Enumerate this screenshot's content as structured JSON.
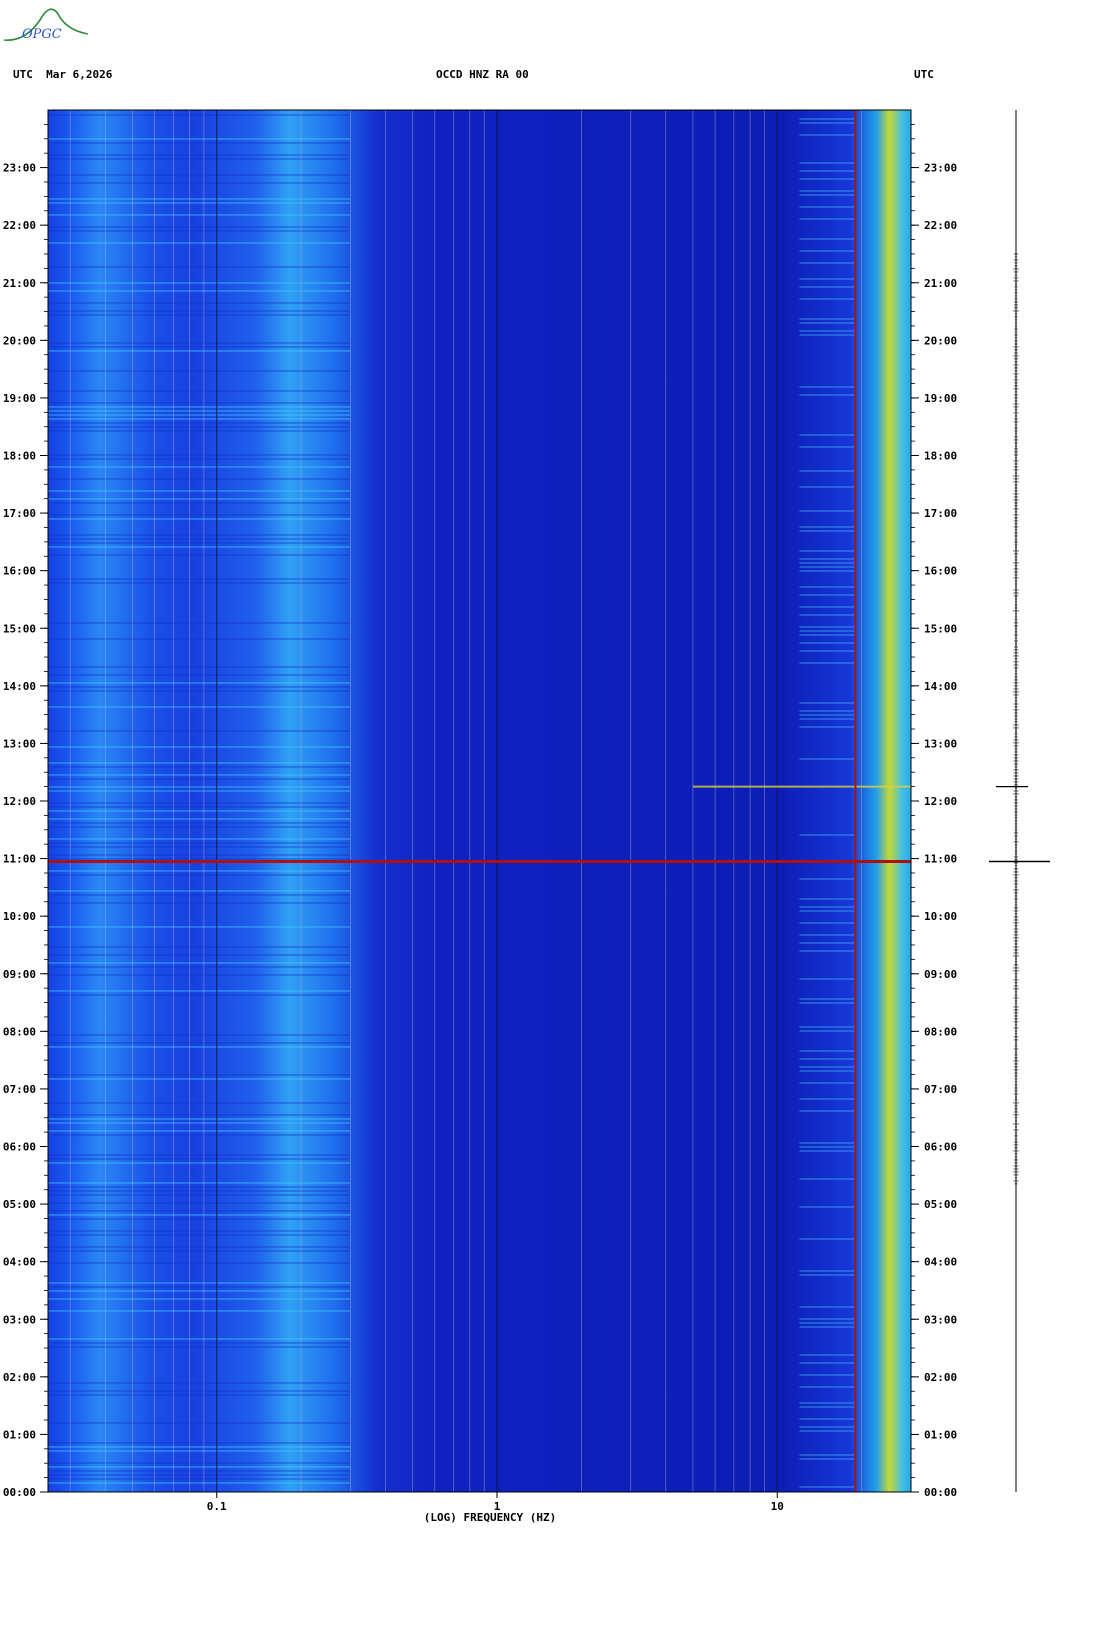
{
  "logo": {
    "text": "OPGC"
  },
  "header": {
    "left": "UTC  Mar 6,2026",
    "center": "OCCD HNZ RA 00",
    "right": "UTC"
  },
  "colors": {
    "low": "#0a1fb8",
    "mid": "#1e5cf0",
    "high": "#3ad8f5",
    "peak": "#e8e020",
    "event": "#b01010"
  },
  "chart_data": {
    "type": "heatmap",
    "title": "OCCD HNZ RA 00",
    "xlabel": "(LOG) FREQUENCY (HZ)",
    "ylabel": "UTC",
    "x_scale": "log",
    "xlim": [
      0.025,
      30
    ],
    "ylim": [
      "00:00",
      "24:00"
    ],
    "x_tick_labels": [
      "0.1",
      "1",
      "10"
    ],
    "x_tick_values": [
      0.1,
      1,
      10
    ],
    "y_tick_labels": [
      "00:00",
      "01:00",
      "02:00",
      "03:00",
      "04:00",
      "05:00",
      "06:00",
      "07:00",
      "08:00",
      "09:00",
      "10:00",
      "11:00",
      "12:00",
      "13:00",
      "14:00",
      "15:00",
      "16:00",
      "17:00",
      "18:00",
      "19:00",
      "20:00",
      "21:00",
      "22:00",
      "23:00"
    ],
    "grid": true,
    "events_utc_hours": [
      10.95,
      12.25
    ],
    "dominant_frequency_bands_hz": [
      [
        0.025,
        0.05
      ],
      [
        0.12,
        0.2
      ],
      [
        20,
        30
      ]
    ]
  }
}
